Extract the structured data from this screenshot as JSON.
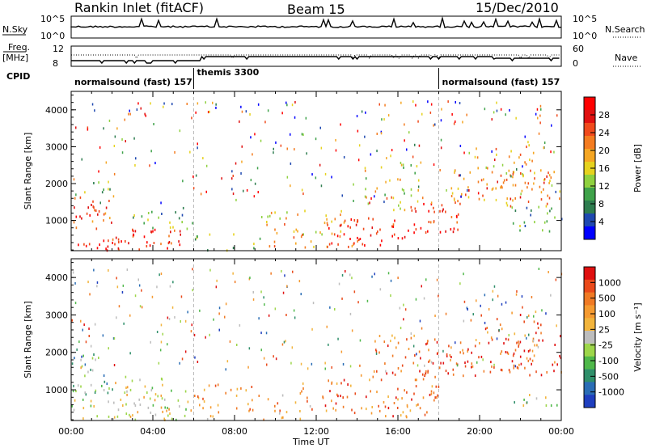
{
  "header": {
    "title": "Rankin Inlet (fitACF)",
    "beam": "Beam 15",
    "date": "15/Dec/2010"
  },
  "labels": {
    "nsky": "N.Sky",
    "nsearch": "N.Search",
    "freq": "Freq.",
    "freq_unit": "[MHz]",
    "nave": "Nave",
    "cpid": "CPID",
    "nsky_ticks": [
      "10^5",
      "10^0"
    ],
    "nsearch_ticks": [
      "10^5",
      "10^0"
    ],
    "freq_ticks": [
      "12",
      "8"
    ],
    "nave_ticks": [
      "60",
      "0"
    ]
  },
  "cpid_segments": [
    {
      "name": "normalsound (fast) 157",
      "start_h": 0,
      "end_h": 6
    },
    {
      "name": "themis 3300",
      "start_h": 6,
      "end_h": 18
    },
    {
      "name": "normalsound (fast) 157",
      "start_h": 18,
      "end_h": 24
    }
  ],
  "x_axis": {
    "label": "Time UT",
    "ticks": [
      "00:00",
      "04:00",
      "08:00",
      "12:00",
      "16:00",
      "20:00",
      "00:00"
    ],
    "range_h": [
      0,
      24
    ]
  },
  "power_panel": {
    "ylabel": "Slant Range [km]",
    "yticks": [
      "1000",
      "2000",
      "3000",
      "4000"
    ],
    "colorbar_label": "Power [dB]",
    "colorbar_ticks": [
      "28",
      "24",
      "20",
      "16",
      "12",
      "8",
      "4"
    ],
    "colors": [
      "#0000ff",
      "#1f49b0",
      "#2e7d4f",
      "#3fa24a",
      "#8fd13f",
      "#e6d21e",
      "#f5a623",
      "#f47c20",
      "#f04a1c",
      "#e01010",
      "#ff0000"
    ]
  },
  "velocity_panel": {
    "ylabel": "Slant Range [km]",
    "yticks": [
      "1000",
      "2000",
      "3000",
      "4000"
    ],
    "colorbar_label": "Velocity [m s⁻¹]",
    "colorbar_ticks": [
      "1000",
      "500",
      "100",
      "25",
      "-25",
      "-100",
      "-500",
      "-1000"
    ],
    "colors": [
      "#1f3fbf",
      "#2a6db5",
      "#2f8f6a",
      "#4fb84a",
      "#9dd64a",
      "#bdbdbd",
      "#f2b43c",
      "#f59a30",
      "#f07a24",
      "#ea4a1a",
      "#e01010"
    ]
  },
  "chart_data": {
    "type": "heatmap",
    "x_range_h": [
      0,
      24
    ],
    "y_range_km": [
      180,
      4500
    ],
    "power_bands": [
      {
        "t0": 0.0,
        "t1": 2.2,
        "r0": 200,
        "r1": 500,
        "level": 10,
        "density": 0.9
      },
      {
        "t0": 0.0,
        "t1": 2.0,
        "r0": 800,
        "r1": 1700,
        "level": 8,
        "density": 0.7
      },
      {
        "t0": 0.5,
        "t1": 2.0,
        "r0": 1700,
        "r1": 2100,
        "level": 4,
        "density": 0.5
      },
      {
        "t0": 2.0,
        "t1": 5.5,
        "r0": 200,
        "r1": 800,
        "level": 9,
        "density": 0.8
      },
      {
        "t0": 3.0,
        "t1": 6.0,
        "r0": 800,
        "r1": 1400,
        "level": 3,
        "density": 0.5
      },
      {
        "t0": 6.0,
        "t1": 9.5,
        "r0": 200,
        "r1": 700,
        "level": 4,
        "density": 0.3
      },
      {
        "t0": 9.0,
        "t1": 14.0,
        "r0": 300,
        "r1": 1300,
        "level": 6,
        "density": 0.45
      },
      {
        "t0": 12.5,
        "t1": 16.5,
        "r0": 300,
        "r1": 1100,
        "level": 9,
        "density": 0.65
      },
      {
        "t0": 14.0,
        "t1": 17.0,
        "r0": 1300,
        "r1": 2600,
        "level": 5,
        "density": 0.35
      },
      {
        "t0": 16.5,
        "t1": 19.0,
        "r0": 700,
        "r1": 1500,
        "level": 9,
        "density": 0.8
      },
      {
        "t0": 18.5,
        "t1": 24.0,
        "r0": 1400,
        "r1": 2400,
        "level": 7,
        "density": 0.6
      },
      {
        "t0": 19.5,
        "t1": 23.0,
        "r0": 2200,
        "r1": 3200,
        "level": 6,
        "density": 0.35
      },
      {
        "t0": 21.5,
        "t1": 24.0,
        "r0": 700,
        "r1": 1400,
        "level": 3,
        "density": 0.55
      }
    ],
    "velocity_bands": [
      {
        "t0": 0.0,
        "t1": 6.0,
        "r0": 200,
        "r1": 800,
        "level": 5,
        "density": 0.7
      },
      {
        "t0": 0.0,
        "t1": 2.0,
        "r0": 800,
        "r1": 2000,
        "level": 3,
        "density": 0.55
      },
      {
        "t0": 2.0,
        "t1": 6.0,
        "r0": 800,
        "r1": 1400,
        "level": 5,
        "density": 0.45
      },
      {
        "t0": 6.0,
        "t1": 12.0,
        "r0": 200,
        "r1": 1200,
        "level": 7,
        "density": 0.4
      },
      {
        "t0": 12.0,
        "t1": 18.0,
        "r0": 300,
        "r1": 1300,
        "level": 8,
        "density": 0.6
      },
      {
        "t0": 14.0,
        "t1": 18.0,
        "r0": 1300,
        "r1": 2500,
        "level": 8,
        "density": 0.35
      },
      {
        "t0": 17.0,
        "t1": 24.0,
        "r0": 1400,
        "r1": 2400,
        "level": 9,
        "density": 0.6
      },
      {
        "t0": 19.5,
        "t1": 23.0,
        "r0": 2200,
        "r1": 3200,
        "level": 8,
        "density": 0.35
      },
      {
        "t0": 21.5,
        "t1": 24.0,
        "r0": 600,
        "r1": 1000,
        "level": 4,
        "density": 0.5
      }
    ]
  }
}
